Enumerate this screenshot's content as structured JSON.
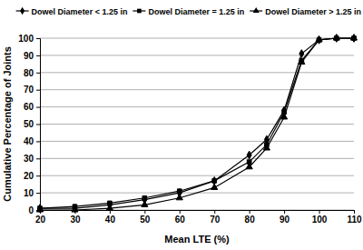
{
  "chart_data": {
    "type": "line",
    "x_label": "Mean LTE (%)",
    "y_label": "Cumulative Percentage of Joints",
    "x": [
      20,
      30,
      40,
      50,
      60,
      70,
      80,
      85,
      90,
      95,
      100,
      105,
      110
    ],
    "series": [
      {
        "name": "Dowel Diameter < 1.25 in",
        "color": "#000000",
        "marker": "diamond",
        "line_style": "solid",
        "values": [
          1,
          1,
          3,
          6,
          10,
          17,
          32,
          41,
          58,
          91,
          99,
          100,
          100
        ]
      },
      {
        "name": "Dowel Diameter = 1.25 in",
        "color": "#000000",
        "marker": "square",
        "line_style": "solid",
        "values": [
          1,
          2,
          4,
          7,
          11,
          17,
          28,
          38,
          57,
          87,
          99,
          100,
          100
        ]
      },
      {
        "name": "Dowel Diameter > 1.25 in",
        "color": "#000000",
        "marker": "triangle",
        "line_style": "solid",
        "values": [
          0,
          0,
          1,
          3,
          7,
          13,
          25,
          36,
          54,
          86,
          99,
          100,
          100
        ]
      }
    ],
    "xlim": [
      20,
      110
    ],
    "xticks": [
      20,
      30,
      40,
      50,
      60,
      70,
      80,
      90,
      100,
      110
    ],
    "ylim": [
      0,
      100
    ],
    "yticks": [
      0,
      10,
      20,
      30,
      40,
      50,
      60,
      70,
      80,
      90,
      100
    ],
    "grid": true,
    "legend": "top"
  }
}
